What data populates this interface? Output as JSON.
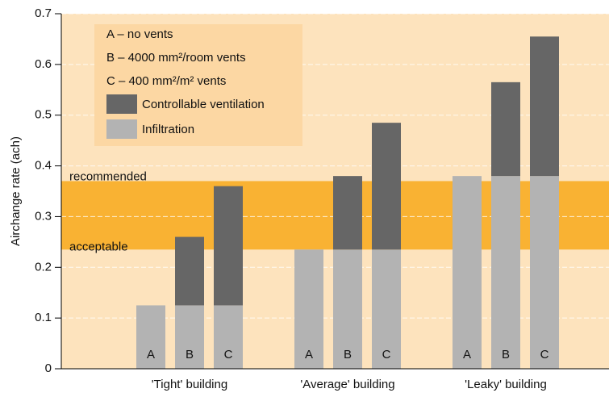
{
  "chart_data": {
    "type": "grouped_stacked_bar",
    "y_label": "Airchange rate (ach)",
    "categories": [
      "'Tight' building",
      "'Average' building",
      "'Leaky' building"
    ],
    "bar_labels": [
      "A",
      "B",
      "C"
    ],
    "legend_notes": [
      "A – no vents",
      "B – 4000 mm²/room vents",
      "C – 400 mm²/m² vents"
    ],
    "series": [
      {
        "name": "Infiltration",
        "color": "#b3b3b3",
        "values": [
          [
            0.125,
            0.125,
            0.125
          ],
          [
            0.235,
            0.235,
            0.235
          ],
          [
            0.38,
            0.38,
            0.38
          ]
        ]
      },
      {
        "name": "Controllable ventilation",
        "color": "#666666",
        "values": [
          [
            null,
            0.135,
            0.235
          ],
          [
            null,
            0.145,
            0.25
          ],
          [
            null,
            0.185,
            0.275
          ]
        ]
      }
    ],
    "band": {
      "range": [
        0.235,
        0.37
      ],
      "color": "#f9b233",
      "upper_label": "recommended",
      "lower_label": "acceptable"
    },
    "background": "#fde3bd",
    "legend_background": "#fcd7a3",
    "ylim": [
      0,
      0.7
    ],
    "yticks": [
      0,
      0.1,
      0.2,
      0.3,
      0.4,
      0.5,
      0.6,
      0.7
    ],
    "grid": true
  }
}
